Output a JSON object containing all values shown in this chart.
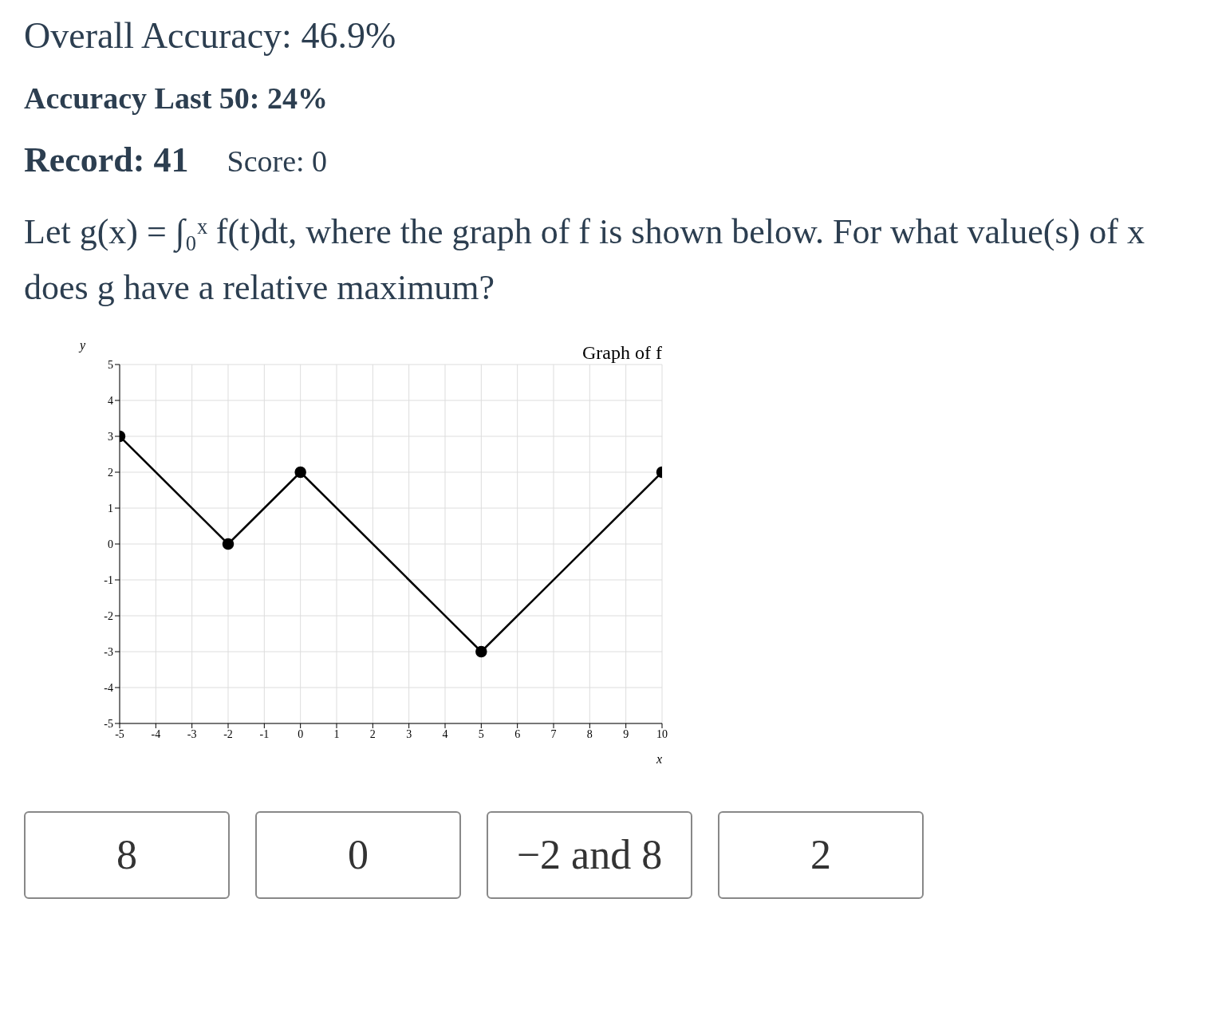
{
  "chart_data": {
    "type": "line",
    "title": "Graph of f",
    "xlabel": "x",
    "ylabel": "y",
    "x": [
      -5,
      -2,
      0,
      5,
      10
    ],
    "series": [
      {
        "color": "#000000",
        "values": [
          3,
          0,
          2,
          -3,
          2
        ]
      }
    ],
    "xlim": [
      -5,
      10
    ],
    "xticks": [
      -5,
      -4,
      -3,
      -2,
      -1,
      0,
      1,
      2,
      3,
      4,
      5,
      6,
      7,
      8,
      9,
      10
    ],
    "ylim": [
      -5,
      5
    ],
    "yticks": [
      -5,
      -4,
      -3,
      -2,
      -1,
      0,
      1,
      2,
      3,
      4,
      5
    ],
    "grid": true,
    "marker": "circle",
    "line_style": "solid",
    "annotations": [
      "Overall Accuracy: 46.9%",
      "Accuracy Last 50: 24%",
      "Record: 41",
      "Score: 0",
      "Let g(x) = ∫₀ˣ f(t)dt, where the graph of f is shown below. For what value(s) of x does g have a relative maximum?",
      "8",
      "0",
      "−2 and 8",
      "2"
    ]
  }
}
